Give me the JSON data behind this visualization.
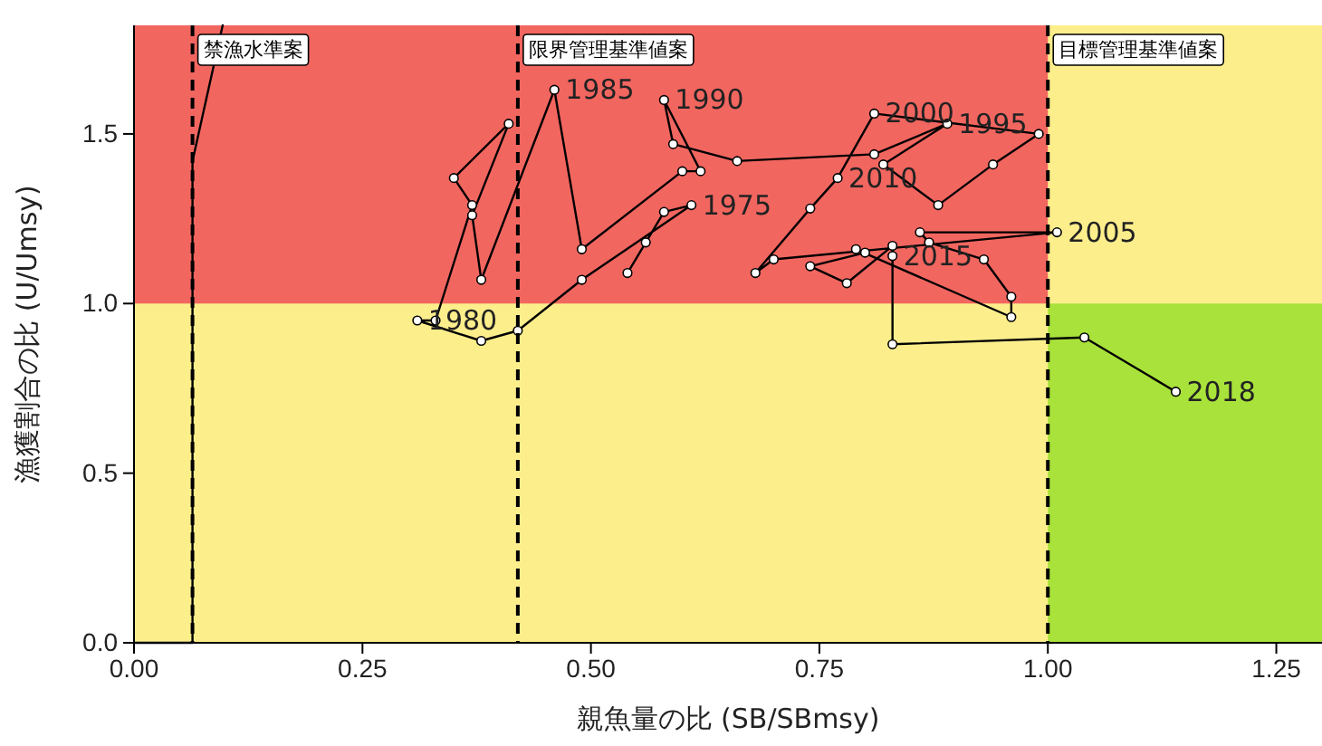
{
  "chart_data": {
    "type": "line",
    "xlabel": "親魚量の比 (SB/SBmsy)",
    "ylabel": "漁獲割合の比 (U/Umsy)",
    "xlim": [
      0,
      1.3
    ],
    "ylim": [
      0,
      1.82
    ],
    "xticks": [
      {
        "value": 0,
        "label": "0.00"
      },
      {
        "value": 0.25,
        "label": "0.25"
      },
      {
        "value": 0.5,
        "label": "0.50"
      },
      {
        "value": 0.75,
        "label": "0.75"
      },
      {
        "value": 1,
        "label": "1.00"
      },
      {
        "value": 1.25,
        "label": "1.25"
      }
    ],
    "yticks": [
      {
        "value": 0,
        "label": "0.0"
      },
      {
        "value": 0.5,
        "label": "0.5"
      },
      {
        "value": 1,
        "label": "1.0"
      },
      {
        "value": 1.5,
        "label": "1.5"
      }
    ],
    "grid": false,
    "marker": "circle",
    "line_style": "solid",
    "bands": [
      {
        "axis": "y",
        "from": 1,
        "to": 1.82,
        "color": "#f26660"
      },
      {
        "axis": "x",
        "from": 1,
        "to": 1.3,
        "color": "#a9e23a"
      }
    ],
    "ref_lines": [
      {
        "axis": "x",
        "value": 0.064,
        "label": "禁漁水準案",
        "line_style": "dashed"
      },
      {
        "axis": "x",
        "value": 0.42,
        "label": "限界管理基準値案",
        "line_style": "dashed"
      },
      {
        "axis": "x",
        "value": 1,
        "label": "目標管理基準値案",
        "line_style": "dashed"
      }
    ],
    "series": [
      {
        "marker": "none",
        "color": "#000000",
        "x": [
          0,
          0.064,
          0.064,
          0.097
        ],
        "values": [
          0,
          0,
          1.42,
          1.82
        ]
      },
      {
        "color": "#000000",
        "x": [
          0.54,
          0.56,
          0.58,
          0.61,
          0.49,
          0.42,
          0.38,
          0.31,
          0.33,
          0.37,
          0.35,
          0.41,
          0.37,
          0.38,
          0.46,
          0.49,
          0.6,
          0.62,
          0.58,
          0.59,
          0.66,
          0.81,
          0.89,
          0.82,
          0.88,
          0.94,
          0.99,
          0.81,
          0.77,
          0.74,
          0.68,
          0.7,
          1.01,
          0.86,
          0.87,
          0.93,
          0.96,
          0.96,
          0.79,
          0.8,
          0.74,
          0.78,
          0.83,
          0.83,
          0.83,
          1.04,
          1.14
        ],
        "values": [
          1.09,
          1.18,
          1.27,
          1.29,
          1.07,
          0.92,
          0.89,
          0.95,
          0.95,
          1.29,
          1.37,
          1.53,
          1.26,
          1.07,
          1.63,
          1.16,
          1.39,
          1.39,
          1.6,
          1.47,
          1.42,
          1.44,
          1.53,
          1.41,
          1.29,
          1.41,
          1.5,
          1.56,
          1.37,
          1.28,
          1.09,
          1.13,
          1.21,
          1.21,
          1.18,
          1.13,
          1.02,
          0.96,
          1.16,
          1.15,
          1.11,
          1.06,
          1.17,
          1.14,
          0.88,
          0.9,
          0.74
        ]
      }
    ],
    "annotations": [
      {
        "text": "1975",
        "x": 0.61,
        "y": 1.29
      },
      {
        "text": "1980",
        "x": 0.31,
        "y": 0.95
      },
      {
        "text": "1985",
        "x": 0.46,
        "y": 1.63
      },
      {
        "text": "1990",
        "x": 0.58,
        "y": 1.6
      },
      {
        "text": "1995",
        "x": 0.89,
        "y": 1.53
      },
      {
        "text": "2000",
        "x": 0.81,
        "y": 1.56
      },
      {
        "text": "2005",
        "x": 1.01,
        "y": 1.21
      },
      {
        "text": "2010",
        "x": 0.77,
        "y": 1.37
      },
      {
        "text": "2015",
        "x": 0.83,
        "y": 1.14
      },
      {
        "text": "2018",
        "x": 1.14,
        "y": 0.74
      }
    ]
  }
}
